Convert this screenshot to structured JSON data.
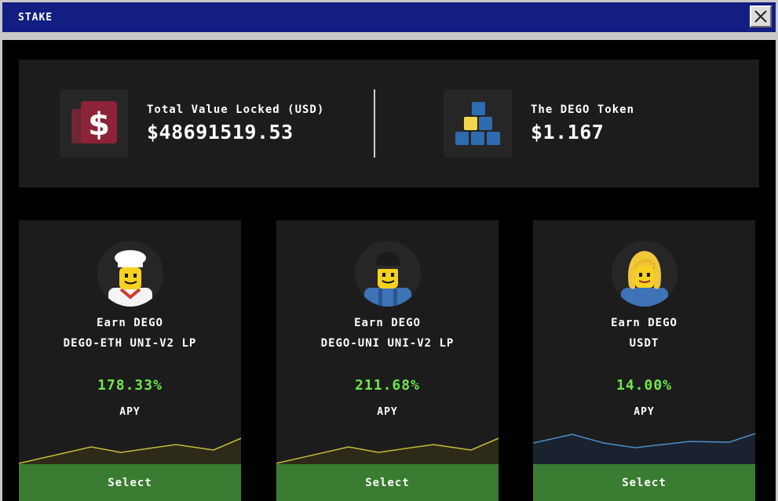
{
  "window": {
    "title": "STAKE"
  },
  "stats": {
    "tvl": {
      "label": "Total Value Locked (USD)",
      "value": "$48691519.53",
      "icon": "dollar-icon"
    },
    "token": {
      "label": "The DEGO Token",
      "value": "$1.167",
      "icon": "blocks-icon"
    }
  },
  "pools": [
    {
      "earn": "Earn DEGO",
      "pair": "DEGO-ETH UNI-V2 LP",
      "apy_value": "178.33%",
      "apy_label": "APY",
      "select_label": "Select",
      "avatar": "chef-minifig-avatar",
      "line_color": "#c8bb3c"
    },
    {
      "earn": "Earn DEGO",
      "pair": "DEGO-UNI UNI-V2 LP",
      "apy_value": "211.68%",
      "apy_label": "APY",
      "select_label": "Select",
      "avatar": "worker-minifig-avatar",
      "line_color": "#c8bb3c"
    },
    {
      "earn": "Earn DEGO",
      "pair": "USDT",
      "apy_value": "14.00%",
      "apy_label": "APY",
      "select_label": "Select",
      "avatar": "blonde-minifig-avatar",
      "line_color": "#4a90c8"
    }
  ],
  "colors": {
    "titlebar": "#131e82",
    "apy": "#6fe64a",
    "select_button": "#3a7c31"
  }
}
